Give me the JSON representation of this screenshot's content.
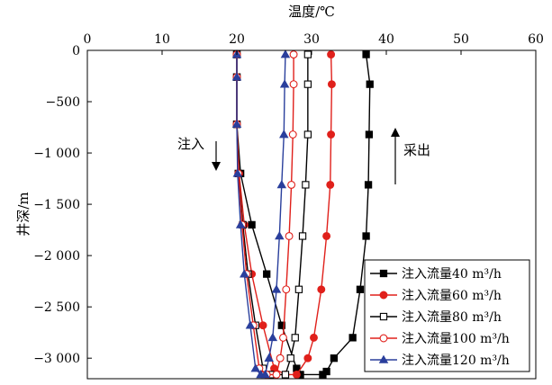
{
  "chart_data": {
    "type": "line",
    "xlabel": "温度/℃",
    "ylabel": "井深/m",
    "x_axis_position": "top",
    "xlim": [
      0,
      60
    ],
    "ylim": [
      -3200,
      0
    ],
    "x_ticks": [
      0,
      10,
      20,
      30,
      40,
      50,
      60
    ],
    "x_tick_labels": [
      "0",
      "10",
      "20",
      "30",
      "40",
      "50",
      "60"
    ],
    "y_ticks": [
      0,
      -500,
      -1000,
      -1500,
      -2000,
      -2500,
      -3000
    ],
    "y_tick_labels": [
      "0",
      "−500",
      "−1 000",
      "−1 500",
      "−2 000",
      "−2 500",
      "−3 000"
    ],
    "grid": false,
    "legend_position": "bottom-right",
    "annotations": [
      {
        "text": "注入",
        "direction": "down"
      },
      {
        "text": "采出",
        "direction": "up"
      }
    ],
    "series": [
      {
        "name": "注入流量40 m³/h",
        "color": "#000000",
        "marker": "filled-square",
        "points": [
          [
            20,
            -40
          ],
          [
            20,
            -260
          ],
          [
            20,
            -720
          ],
          [
            20.5,
            -1200
          ],
          [
            22,
            -1700
          ],
          [
            24,
            -2180
          ],
          [
            26,
            -2680
          ],
          [
            28,
            -3100
          ],
          [
            28.5,
            -3160
          ],
          [
            31.5,
            -3160
          ],
          [
            32,
            -3130
          ],
          [
            33,
            -3000
          ],
          [
            35.5,
            -2800
          ],
          [
            36.5,
            -2330
          ],
          [
            37.3,
            -1810
          ],
          [
            37.6,
            -1310
          ],
          [
            37.7,
            -820
          ],
          [
            37.8,
            -330
          ],
          [
            37.3,
            -40
          ]
        ]
      },
      {
        "name": "注入流量60 m³/h",
        "color": "#e0201b",
        "marker": "filled-circle",
        "points": [
          [
            20,
            -40
          ],
          [
            20,
            -260
          ],
          [
            20,
            -720
          ],
          [
            20.3,
            -1200
          ],
          [
            21,
            -1700
          ],
          [
            22,
            -2180
          ],
          [
            23.5,
            -2680
          ],
          [
            25,
            -3100
          ],
          [
            26.5,
            -3160
          ],
          [
            28,
            -3160
          ],
          [
            29.5,
            -3000
          ],
          [
            30.3,
            -2800
          ],
          [
            31.3,
            -2330
          ],
          [
            32,
            -1810
          ],
          [
            32.5,
            -1310
          ],
          [
            32.6,
            -820
          ],
          [
            32.7,
            -330
          ],
          [
            32.6,
            -40
          ]
        ]
      },
      {
        "name": "注入流量80 m³/h",
        "color": "#000000",
        "marker": "open-square",
        "points": [
          [
            20,
            -40
          ],
          [
            20,
            -260
          ],
          [
            20,
            -720
          ],
          [
            20.2,
            -1200
          ],
          [
            20.8,
            -1700
          ],
          [
            21.5,
            -2180
          ],
          [
            22.5,
            -2680
          ],
          [
            23.5,
            -3100
          ],
          [
            24.5,
            -3160
          ],
          [
            26.5,
            -3160
          ],
          [
            27.2,
            -3000
          ],
          [
            27.8,
            -2800
          ],
          [
            28.3,
            -2330
          ],
          [
            28.8,
            -1810
          ],
          [
            29.2,
            -1310
          ],
          [
            29.5,
            -820
          ],
          [
            29.5,
            -330
          ],
          [
            29.5,
            -40
          ]
        ]
      },
      {
        "name": "注入流量100 m³/h",
        "color": "#e0201b",
        "marker": "open-circle",
        "points": [
          [
            20,
            -40
          ],
          [
            20,
            -260
          ],
          [
            20,
            -720
          ],
          [
            20.2,
            -1200
          ],
          [
            20.7,
            -1700
          ],
          [
            21.3,
            -2180
          ],
          [
            22.2,
            -2680
          ],
          [
            23,
            -3100
          ],
          [
            24,
            -3160
          ],
          [
            25.3,
            -3160
          ],
          [
            25.8,
            -3000
          ],
          [
            26.2,
            -2800
          ],
          [
            26.6,
            -2330
          ],
          [
            27,
            -1810
          ],
          [
            27.3,
            -1310
          ],
          [
            27.5,
            -820
          ],
          [
            27.6,
            -330
          ],
          [
            27.6,
            -40
          ]
        ]
      },
      {
        "name": "注入流量120 m³/h",
        "color": "#2a3f9c",
        "marker": "filled-triangle",
        "points": [
          [
            20,
            -40
          ],
          [
            20,
            -260
          ],
          [
            20,
            -720
          ],
          [
            20.1,
            -1200
          ],
          [
            20.5,
            -1700
          ],
          [
            21,
            -2180
          ],
          [
            21.8,
            -2680
          ],
          [
            22.5,
            -3100
          ],
          [
            23.2,
            -3160
          ],
          [
            23.8,
            -3160
          ],
          [
            24.3,
            -3000
          ],
          [
            24.8,
            -2800
          ],
          [
            25.3,
            -2330
          ],
          [
            25.7,
            -1810
          ],
          [
            26,
            -1310
          ],
          [
            26.3,
            -820
          ],
          [
            26.4,
            -330
          ],
          [
            26.5,
            -40
          ]
        ]
      }
    ]
  }
}
